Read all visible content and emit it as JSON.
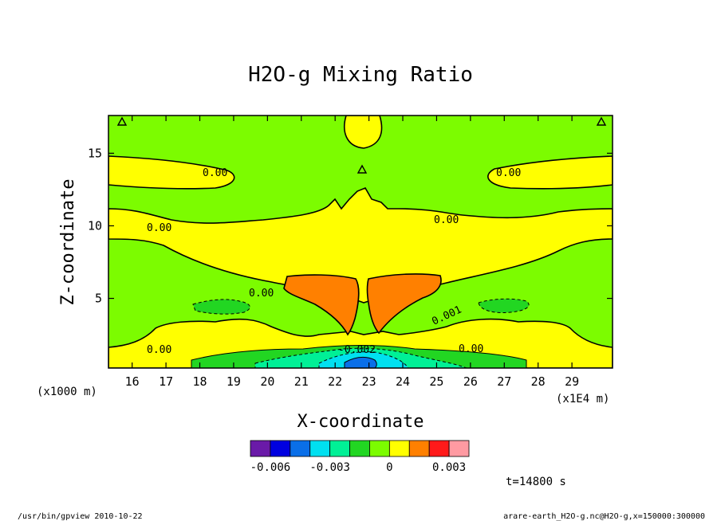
{
  "chart_data": {
    "type": "contour",
    "title": "H2O-g Mixing Ratio",
    "xlabel": "X-coordinate",
    "ylabel": "Z-coordinate",
    "x_unit": "(x1E4 m)",
    "y_unit": "(x1000 m)",
    "xlim": [
      15.3,
      30.2
    ],
    "ylim": [
      0.2,
      17.6
    ],
    "x_ticks": [
      "16",
      "17",
      "18",
      "19",
      "20",
      "21",
      "22",
      "23",
      "24",
      "25",
      "26",
      "27",
      "28",
      "29"
    ],
    "y_ticks": [
      "5",
      "10",
      "15"
    ],
    "contour_labels": [
      "0.00",
      "0.00",
      "0.00",
      "0.00",
      "0.00",
      "0.00",
      "0.00",
      "-0.002",
      "0.001"
    ],
    "colorbar": {
      "colors": [
        "#6a1aa8",
        "#0000e0",
        "#0a6fe8",
        "#00e0f0",
        "#00f096",
        "#22d622",
        "#7cfc00",
        "#ffff00",
        "#ff8000",
        "#ff1a1a",
        "#ff9aa2"
      ],
      "tick_labels": [
        "-0.006",
        "-0.003",
        "0",
        "0.003"
      ]
    },
    "time_label": "t=14800 s",
    "footer_left": "/usr/bin/gpview  2010-10-22",
    "footer_right": "arare-earth_H2O-g.nc@H2O-g,x=150000:300000"
  }
}
